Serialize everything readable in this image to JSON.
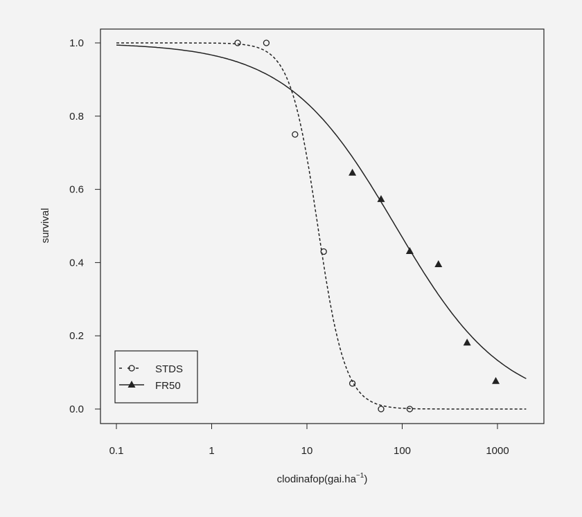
{
  "chart_data": {
    "type": "scatter",
    "title": "",
    "xlabel": "clodinafop(gai.ha",
    "xlabel_superscript": "−1",
    "xlabel_suffix": ")",
    "ylabel": "survival",
    "x_scale": "log",
    "xlim": [
      0.07,
      3000
    ],
    "ylim": [
      -0.04,
      1.04
    ],
    "x_ticks": [
      0.1,
      1,
      10,
      100,
      1000
    ],
    "x_tick_labels": [
      "0.1",
      "1",
      "10",
      "100",
      "1000"
    ],
    "y_ticks": [
      0,
      0.2,
      0.4,
      0.6,
      0.8,
      1.0
    ],
    "y_tick_labels": [
      "0.0",
      "0.2",
      "0.4",
      "0.6",
      "0.8",
      "1.0"
    ],
    "grid": false,
    "legend_position": "bottom-left",
    "series": [
      {
        "name": "STDS",
        "marker": "open-circle",
        "line": "dashed",
        "x": [
          1.875,
          3.75,
          7.5,
          15,
          30,
          60,
          120
        ],
        "y": [
          1.0,
          1.0,
          0.75,
          0.43,
          0.07,
          0.0,
          0.0
        ],
        "fit": {
          "model": "log-logistic",
          "ed50": 13,
          "slope": 3,
          "x_range": [
            0.1,
            2000
          ]
        }
      },
      {
        "name": "FR50",
        "marker": "filled-triangle",
        "line": "solid",
        "x": [
          30,
          60,
          120,
          240,
          480,
          960
        ],
        "y": [
          0.645,
          0.573,
          0.431,
          0.395,
          0.181,
          0.076
        ],
        "fit": {
          "model": "log-logistic",
          "ed50": 85,
          "slope": 0.76,
          "x_range": [
            0.1,
            2000
          ]
        }
      }
    ],
    "colors": {
      "ink": "#222222",
      "background": "#f3f3f3"
    }
  }
}
